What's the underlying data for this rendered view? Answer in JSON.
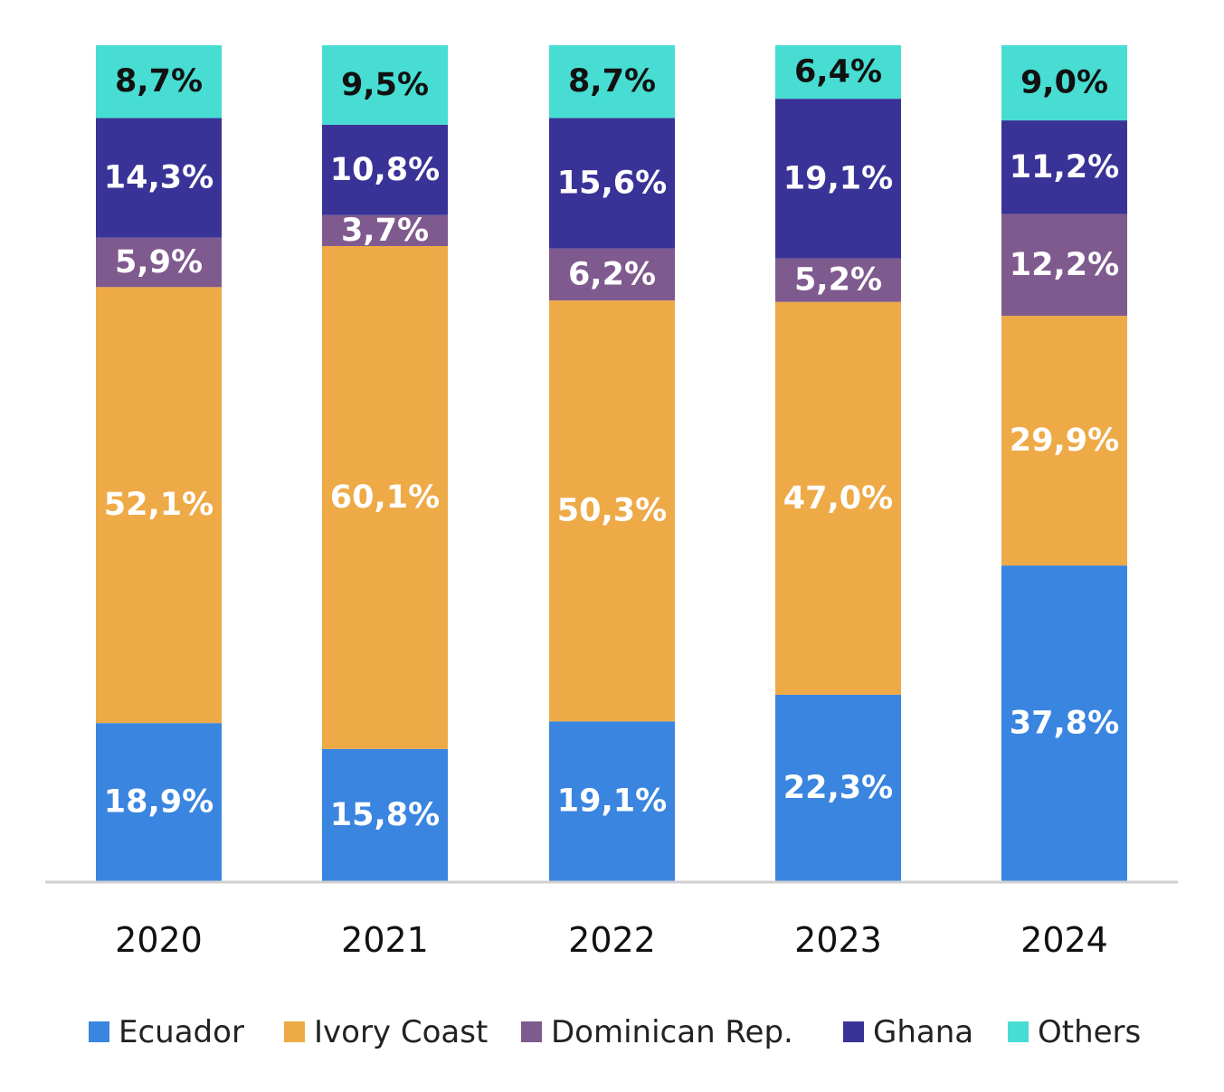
{
  "chart_data": {
    "type": "bar",
    "stacked": true,
    "categories": [
      "2020",
      "2021",
      "2022",
      "2023",
      "2024"
    ],
    "series": [
      {
        "name": "Ecuador",
        "color": "#3A85E0",
        "label_color": "#ffffff",
        "values": [
          18.9,
          15.8,
          19.1,
          22.3,
          37.8
        ],
        "labels": [
          "18,9%",
          "15,8%",
          "19,1%",
          "22,3%",
          "37,8%"
        ]
      },
      {
        "name": "Ivory Coast",
        "color": "#EEAA47",
        "label_color": "#ffffff",
        "values": [
          52.1,
          60.1,
          50.3,
          47.0,
          29.9
        ],
        "labels": [
          "52,1%",
          "60,1%",
          "50,3%",
          "47,0%",
          "29,9%"
        ]
      },
      {
        "name": "Dominican Rep.",
        "color": "#7F5A8E",
        "label_color": "#ffffff",
        "values": [
          5.9,
          3.7,
          6.2,
          5.2,
          12.2
        ],
        "labels": [
          "5,9%",
          "3,7%",
          "6,2%",
          "5,2%",
          "12,2%"
        ]
      },
      {
        "name": "Ghana",
        "color": "#3A3397",
        "label_color": "#ffffff",
        "values": [
          14.3,
          10.8,
          15.6,
          19.1,
          11.2
        ],
        "labels": [
          "14,3%",
          "10,8%",
          "15,6%",
          "19,1%",
          "11,2%"
        ]
      },
      {
        "name": "Others",
        "color": "#48DDD3",
        "label_color": "#111111",
        "values": [
          8.7,
          9.5,
          8.7,
          6.4,
          9.0
        ],
        "labels": [
          "8,7%",
          "9,5%",
          "8,7%",
          "6,4%",
          "9,0%"
        ]
      }
    ],
    "ylim": [
      0,
      100
    ],
    "grid": false,
    "legend_position": "bottom",
    "axis_color": "#D0D0D0"
  }
}
